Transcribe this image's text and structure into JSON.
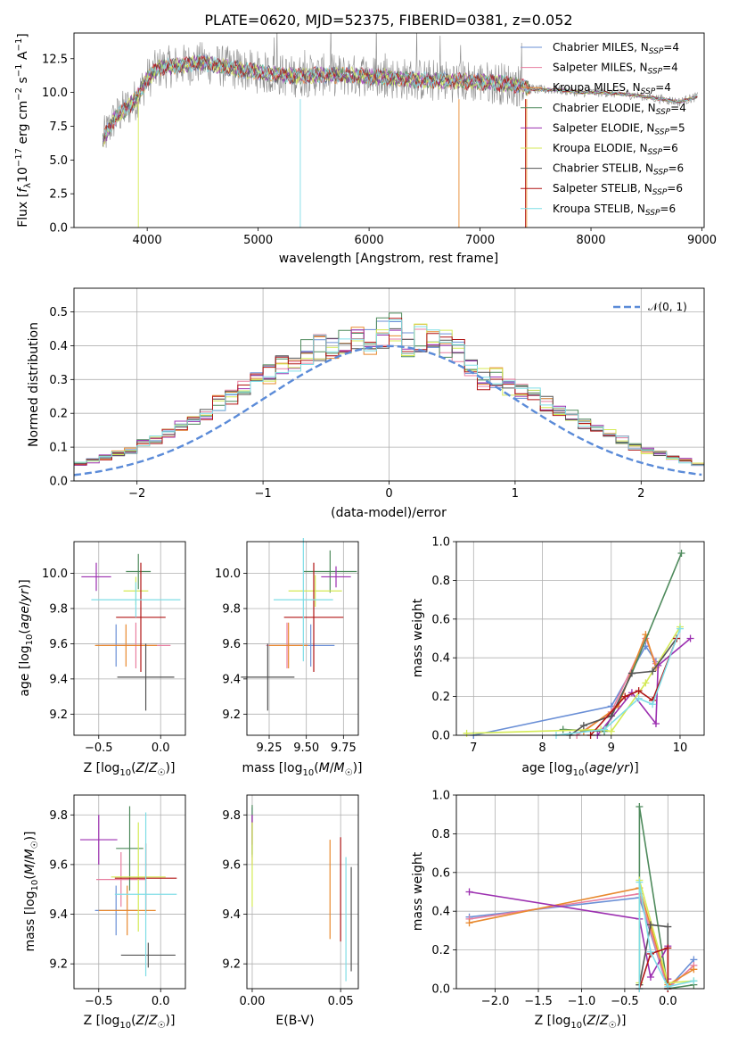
{
  "colors": {
    "chabrier_miles": "#6a8fd6",
    "salpeter_miles": "#e87ea0",
    "kroupa_miles": "#e8892e",
    "chabrier_elodie": "#4e8a5c",
    "salpeter_elodie": "#9c2fb0",
    "kroupa_elodie": "#d4ea55",
    "chabrier_stelib": "#555555",
    "salpeter_stelib": "#b01515",
    "kroupa_stelib": "#7fdde6",
    "data": "#8a8a8a",
    "gaussian": "#5b8bd8"
  },
  "legend_labels": [
    {
      "text": "Chabrier MILES, N",
      "sub": "SSP",
      "tail": "=4",
      "color": "#6a8fd6"
    },
    {
      "text": "Salpeter MILES, N",
      "sub": "SSP",
      "tail": "=4",
      "color": "#e87ea0"
    },
    {
      "text": "Kroupa MILES, N",
      "sub": "SSP",
      "tail": "=4",
      "color": "#e8892e"
    },
    {
      "text": "Chabrier ELODIE, N",
      "sub": "SSP",
      "tail": "=4",
      "color": "#4e8a5c"
    },
    {
      "text": "Salpeter ELODIE, N",
      "sub": "SSP",
      "tail": "=5",
      "color": "#9c2fb0"
    },
    {
      "text": "Kroupa ELODIE, N",
      "sub": "SSP",
      "tail": "=6",
      "color": "#d4ea55"
    },
    {
      "text": "Chabrier STELIB, N",
      "sub": "SSP",
      "tail": "=6",
      "color": "#555555"
    },
    {
      "text": "Salpeter STELIB, N",
      "sub": "SSP",
      "tail": "=6",
      "color": "#b01515"
    },
    {
      "text": "Kroupa STELIB, N",
      "sub": "SSP",
      "tail": "=6",
      "color": "#7fdde6"
    }
  ],
  "chart_data": [
    {
      "type": "line",
      "title": "PLATE=0620, MJD=52375, FIBERID=0381, z=0.052",
      "xlabel": "wavelength [Angstrom, rest frame]",
      "ylabel": "Flux [f_λ 10^-17 erg cm^-2 s^-1 A^-1]",
      "xlim": [
        3340,
        9020
      ],
      "ylim": [
        0,
        14.4
      ],
      "xticks": [
        "4000",
        "5000",
        "6000",
        "7000",
        "8000",
        "9000"
      ],
      "yticks": [
        "0.0",
        "2.5",
        "5.0",
        "7.5",
        "10.0",
        "12.5"
      ],
      "spectrum_trend": [
        [
          3600,
          6.5
        ],
        [
          3700,
          8.0
        ],
        [
          3900,
          9.5
        ],
        [
          4000,
          11.0
        ],
        [
          4100,
          11.8
        ],
        [
          4300,
          12.0
        ],
        [
          4500,
          12.2
        ],
        [
          4700,
          11.9
        ],
        [
          5000,
          11.5
        ],
        [
          5300,
          11.2
        ],
        [
          5600,
          11.3
        ],
        [
          6000,
          11.2
        ],
        [
          6500,
          10.9
        ],
        [
          7000,
          10.8
        ],
        [
          7300,
          10.6
        ],
        [
          7500,
          10.2
        ],
        [
          7700,
          10.2
        ],
        [
          7900,
          10.0
        ],
        [
          8100,
          10.0
        ],
        [
          8400,
          9.8
        ],
        [
          8800,
          9.3
        ],
        [
          8960,
          9.7
        ]
      ]
    },
    {
      "type": "step",
      "xlabel": "(data-model)/error",
      "ylabel": "Normed distribution",
      "xlim": [
        -2.5,
        2.5
      ],
      "ylim": [
        0,
        0.57
      ],
      "xticks": [
        "−2",
        "−1",
        "0",
        "1",
        "2"
      ],
      "yticks": [
        "0.0",
        "0.1",
        "0.2",
        "0.3",
        "0.4",
        "0.5"
      ],
      "legend": "𝒩(0, 1)",
      "bin_width": 0.1,
      "mean_histogram": [
        0.02,
        0.025,
        0.03,
        0.035,
        0.04,
        0.05,
        0.06,
        0.07,
        0.08,
        0.09,
        0.11,
        0.12,
        0.14,
        0.16,
        0.18,
        0.2,
        0.23,
        0.25,
        0.28,
        0.3,
        0.32,
        0.34,
        0.36,
        0.38,
        0.39,
        0.4,
        0.41,
        0.43,
        0.42,
        0.44,
        0.46,
        0.4,
        0.42,
        0.42,
        0.41,
        0.38,
        0.33,
        0.3,
        0.31,
        0.28,
        0.26,
        0.25,
        0.23,
        0.21,
        0.19,
        0.17,
        0.16,
        0.14,
        0.12,
        0.1,
        0.09,
        0.08,
        0.07,
        0.06,
        0.05,
        0.05,
        0.04,
        0.035,
        0.03,
        0.025
      ]
    },
    {
      "type": "errorbar",
      "xlabel": "Z [log10(Z/Z☉)]",
      "ylabel": "age  [log10(age/yr)]",
      "xlim": [
        -0.7,
        0.2
      ],
      "ylim": [
        9.08,
        10.18
      ],
      "xticks": [
        "−0.5",
        "0.0"
      ],
      "yticks": [
        "9.2",
        "9.4",
        "9.6",
        "9.8",
        "10.0"
      ],
      "points": [
        {
          "x": -0.36,
          "y": 9.59,
          "xerr": 0.16,
          "yerr": 0.12,
          "color": "#6a8fd6"
        },
        {
          "x": -0.2,
          "y": 9.59,
          "xerr": 0.28,
          "yerr": 0.13,
          "color": "#e87ea0"
        },
        {
          "x": -0.28,
          "y": 9.59,
          "xerr": 0.25,
          "yerr": 0.12,
          "color": "#e8892e"
        },
        {
          "x": -0.18,
          "y": 10.01,
          "xerr": 0.1,
          "yerr": 0.1,
          "color": "#4e8a5c"
        },
        {
          "x": -0.52,
          "y": 9.98,
          "xerr": 0.12,
          "yerr": 0.08,
          "color": "#9c2fb0"
        },
        {
          "x": -0.2,
          "y": 9.9,
          "xerr": 0.1,
          "yerr": 0.08,
          "color": "#d4ea55"
        },
        {
          "x": -0.12,
          "y": 9.41,
          "xerr": 0.23,
          "yerr": 0.19,
          "color": "#555555"
        },
        {
          "x": -0.16,
          "y": 9.75,
          "xerr": 0.2,
          "yerr": 0.31,
          "color": "#b01515"
        },
        {
          "x": -0.2,
          "y": 9.85,
          "xerr": 0.36,
          "yerr": 0.1,
          "color": "#7fdde6"
        }
      ]
    },
    {
      "type": "errorbar",
      "xlabel": "mass [log10(M/M☉)]",
      "ylabel": "",
      "xlim": [
        9.1,
        9.85
      ],
      "ylim": [
        9.08,
        10.18
      ],
      "xticks": [
        "9.25",
        "9.50",
        "9.75"
      ],
      "yticks": [
        "9.2",
        "9.4",
        "9.6",
        "9.8",
        "10.0"
      ],
      "points": [
        {
          "x": 9.53,
          "y": 9.59,
          "xerr": 0.16,
          "yerr": 0.12,
          "color": "#6a8fd6"
        },
        {
          "x": 9.37,
          "y": 9.59,
          "xerr": 0.14,
          "yerr": 0.13,
          "color": "#e87ea0"
        },
        {
          "x": 9.38,
          "y": 9.59,
          "xerr": 0.13,
          "yerr": 0.13,
          "color": "#e8892e"
        },
        {
          "x": 9.66,
          "y": 10.01,
          "xerr": 0.18,
          "yerr": 0.12,
          "color": "#4e8a5c"
        },
        {
          "x": 9.7,
          "y": 9.98,
          "xerr": 0.1,
          "yerr": 0.06,
          "color": "#9c2fb0"
        },
        {
          "x": 9.56,
          "y": 9.9,
          "xerr": 0.18,
          "yerr": 0.09,
          "color": "#d4ea55"
        },
        {
          "x": 9.24,
          "y": 9.41,
          "xerr": 0.18,
          "yerr": 0.19,
          "color": "#555555"
        },
        {
          "x": 9.55,
          "y": 9.75,
          "xerr": 0.2,
          "yerr": 0.31,
          "color": "#b01515"
        },
        {
          "x": 9.48,
          "y": 9.85,
          "xerr": 0.2,
          "yerr": 0.35,
          "color": "#7fdde6"
        }
      ]
    },
    {
      "type": "line",
      "xlabel": "age  [log10(age/yr)]",
      "ylabel": "mass weight",
      "xlim": [
        6.75,
        10.35
      ],
      "ylim": [
        0,
        1
      ],
      "xticks": [
        "7",
        "8",
        "9",
        "10"
      ],
      "yticks": [
        "0.0",
        "0.2",
        "0.4",
        "0.6",
        "0.8",
        "1.0"
      ],
      "series": [
        {
          "color": "#6a8fd6",
          "x": [
            7.0,
            9.0,
            9.5,
            9.65
          ],
          "y": [
            0.0,
            0.15,
            0.46,
            0.38
          ]
        },
        {
          "color": "#e87ea0",
          "x": [
            8.5,
            9.0,
            9.5,
            9.65
          ],
          "y": [
            0.0,
            0.12,
            0.5,
            0.37
          ]
        },
        {
          "color": "#e8892e",
          "x": [
            8.6,
            9.1,
            9.5,
            9.65
          ],
          "y": [
            0.02,
            0.15,
            0.52,
            0.35
          ]
        },
        {
          "color": "#4e8a5c",
          "x": [
            8.3,
            8.9,
            9.3,
            10.02
          ],
          "y": [
            0.03,
            0.02,
            0.32,
            0.94
          ]
        },
        {
          "color": "#9c2fb0",
          "x": [
            8.8,
            9.3,
            9.65,
            9.68,
            10.15
          ],
          "y": [
            0.0,
            0.22,
            0.06,
            0.36,
            0.5
          ]
        },
        {
          "color": "#d4ea55",
          "x": [
            6.9,
            8.85,
            9.0,
            9.5,
            10.0
          ],
          "y": [
            0.01,
            0.03,
            0.02,
            0.27,
            0.56
          ]
        },
        {
          "color": "#555555",
          "x": [
            8.4,
            8.6,
            9.0,
            9.3,
            9.6,
            9.95
          ],
          "y": [
            0.0,
            0.05,
            0.1,
            0.32,
            0.33,
            0.5
          ]
        },
        {
          "color": "#b01515",
          "x": [
            8.7,
            9.2,
            9.4,
            9.6,
            9.95
          ],
          "y": [
            0.0,
            0.2,
            0.23,
            0.18,
            0.5
          ]
        },
        {
          "color": "#7fdde6",
          "x": [
            8.2,
            8.9,
            9.4,
            9.6,
            10.0
          ],
          "y": [
            0.0,
            0.03,
            0.19,
            0.16,
            0.55
          ]
        }
      ]
    },
    {
      "type": "errorbar",
      "xlabel": "Z [log10(Z/Z☉)]",
      "ylabel": "mass [log10(M/M☉)]",
      "xlim": [
        -0.7,
        0.2
      ],
      "ylim": [
        9.1,
        9.88
      ],
      "xticks": [
        "−0.5",
        "0.0"
      ],
      "yticks": [
        "9.2",
        "9.4",
        "9.6",
        "9.8"
      ],
      "points": [
        {
          "x": -0.36,
          "y": 9.415,
          "xerr": 0.17,
          "yerr": 0.1,
          "color": "#6a8fd6"
        },
        {
          "x": -0.32,
          "y": 9.54,
          "xerr": 0.2,
          "yerr": 0.11,
          "color": "#e87ea0"
        },
        {
          "x": -0.27,
          "y": 9.415,
          "xerr": 0.23,
          "yerr": 0.1,
          "color": "#e8892e"
        },
        {
          "x": -0.25,
          "y": 9.665,
          "xerr": 0.11,
          "yerr": 0.17,
          "color": "#4e8a5c"
        },
        {
          "x": -0.5,
          "y": 9.7,
          "xerr": 0.15,
          "yerr": 0.1,
          "color": "#9c2fb0"
        },
        {
          "x": -0.18,
          "y": 9.55,
          "xerr": 0.22,
          "yerr": 0.22,
          "color": "#d4ea55"
        },
        {
          "x": -0.1,
          "y": 9.235,
          "xerr": 0.22,
          "yerr": 0.05,
          "color": "#555555"
        },
        {
          "x": -0.12,
          "y": 9.545,
          "xerr": 0.25,
          "yerr": 0.14,
          "color": "#b01515"
        },
        {
          "x": -0.12,
          "y": 9.48,
          "xerr": 0.25,
          "yerr": 0.33,
          "color": "#7fdde6"
        }
      ]
    },
    {
      "type": "errorbar",
      "xlabel": "E(B-V)",
      "ylabel": "",
      "xlim": [
        -0.003,
        0.06
      ],
      "ylim": [
        9.1,
        9.88
      ],
      "xticks": [
        "0.00",
        "0.05"
      ],
      "yticks": [
        "9.2",
        "9.4",
        "9.6",
        "9.8"
      ],
      "points": [
        {
          "x": 0.0,
          "y": 9.73,
          "xerr": 0,
          "yerr": 0.1,
          "color": "#6a8fd6"
        },
        {
          "x": 0.0,
          "y": 9.7,
          "xerr": 0,
          "yerr": 0.1,
          "color": "#e87ea0"
        },
        {
          "x": 0.044,
          "y": 9.5,
          "xerr": 0,
          "yerr": 0.2,
          "color": "#e8892e"
        },
        {
          "x": 0.0,
          "y": 9.74,
          "xerr": 0,
          "yerr": 0.1,
          "color": "#4e8a5c"
        },
        {
          "x": 0.0,
          "y": 9.74,
          "xerr": 0,
          "yerr": 0.06,
          "color": "#9c2fb0"
        },
        {
          "x": 0.0,
          "y": 9.6,
          "xerr": 0,
          "yerr": 0.17,
          "color": "#d4ea55"
        },
        {
          "x": 0.056,
          "y": 9.38,
          "xerr": 0,
          "yerr": 0.21,
          "color": "#555555"
        },
        {
          "x": 0.05,
          "y": 9.5,
          "xerr": 0,
          "yerr": 0.21,
          "color": "#b01515"
        },
        {
          "x": 0.053,
          "y": 9.38,
          "xerr": 0,
          "yerr": 0.25,
          "color": "#7fdde6"
        }
      ]
    },
    {
      "type": "line",
      "xlabel": "Z [log10(Z/Z☉)]",
      "ylabel": "mass weight",
      "xlim": [
        -2.45,
        0.42
      ],
      "ylim": [
        0,
        1
      ],
      "xticks": [
        "−2.0",
        "−1.5",
        "−1.0",
        "−0.5",
        "0.0"
      ],
      "yticks": [
        "0.0",
        "0.2",
        "0.4",
        "0.6",
        "0.8",
        "1.0"
      ],
      "series": [
        {
          "color": "#6a8fd6",
          "x": [
            -2.3,
            -0.33,
            0.0,
            0.3
          ],
          "y": [
            0.37,
            0.47,
            0.0,
            0.15
          ]
        },
        {
          "color": "#e87ea0",
          "x": [
            -2.3,
            -0.33,
            0.0,
            0.3
          ],
          "y": [
            0.36,
            0.49,
            0.0,
            0.12
          ]
        },
        {
          "color": "#e8892e",
          "x": [
            -2.3,
            -0.33,
            0.0,
            0.3
          ],
          "y": [
            0.34,
            0.52,
            0.02,
            0.1
          ]
        },
        {
          "color": "#4e8a5c",
          "x": [
            -0.33,
            -0.33,
            0.0,
            0.3
          ],
          "y": [
            0.02,
            0.94,
            0.0,
            0.02
          ]
        },
        {
          "color": "#9c2fb0",
          "x": [
            -2.3,
            -0.33,
            -0.2,
            0.0,
            0.0
          ],
          "y": [
            0.5,
            0.36,
            0.06,
            0.22,
            0.05
          ]
        },
        {
          "color": "#d4ea55",
          "x": [
            -0.33,
            -0.33,
            0.0,
            0.3
          ],
          "y": [
            0.03,
            0.56,
            0.03,
            0.04
          ]
        },
        {
          "color": "#555555",
          "x": [
            -0.33,
            -0.2,
            0.0,
            0.0
          ],
          "y": [
            0.02,
            0.33,
            0.32,
            0.0
          ]
        },
        {
          "color": "#b01515",
          "x": [
            -0.33,
            -0.2,
            0.0,
            0.0
          ],
          "y": [
            0.0,
            0.18,
            0.21,
            0.0
          ]
        },
        {
          "color": "#7fdde6",
          "x": [
            -0.33,
            -0.33,
            -0.2,
            0.0,
            0.3
          ],
          "y": [
            0.0,
            0.55,
            0.19,
            0.01,
            0.04
          ]
        }
      ]
    }
  ]
}
